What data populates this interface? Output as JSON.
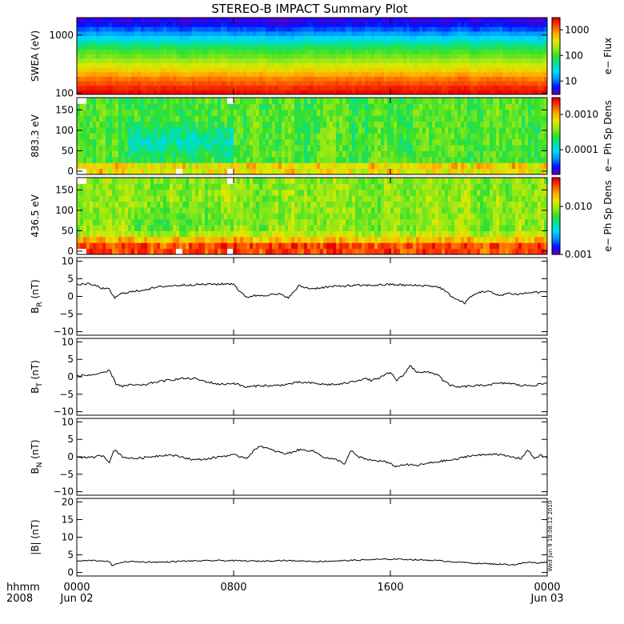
{
  "title": "STEREO-B IMPACT Summary Plot",
  "stamp": "Wed Jun  9 18:08:12 2010",
  "time_axis": {
    "row1_label": "hhmm",
    "row2_label": "2008",
    "ticks": [
      {
        "t": 0,
        "top": "0000",
        "bottom": "Jun 02"
      },
      {
        "t": 480,
        "top": "0800",
        "bottom": ""
      },
      {
        "t": 960,
        "top": "1600",
        "bottom": ""
      },
      {
        "t": 1440,
        "top": "0000",
        "bottom": "Jun 03"
      }
    ]
  },
  "colors": {
    "colormap": [
      "#5a00c8",
      "#0010ff",
      "#0090ff",
      "#00d8ff",
      "#00e0a0",
      "#30e030",
      "#90e818",
      "#e0e800",
      "#ffb000",
      "#ff5000",
      "#e80000"
    ],
    "line": "#000000",
    "frame": "#000000"
  },
  "chart_data": [
    {
      "type": "heatmap",
      "name": "swea",
      "ylabel": "SWEA (eV)",
      "yscale": "log",
      "ylim": [
        95,
        2000
      ],
      "yticks": [
        {
          "v": 100,
          "label": "100"
        },
        {
          "v": 1000,
          "label": "1000"
        }
      ],
      "colorbar": {
        "label": "e− Flux",
        "scale": "log",
        "range": [
          3,
          3000
        ],
        "ticks": [
          {
            "v": 10,
            "label": "10"
          },
          {
            "v": 100,
            "label": "100"
          },
          {
            "v": 1000,
            "label": "1000"
          }
        ]
      },
      "profile_level": [
        0.98,
        0.95,
        0.9,
        0.86,
        0.8,
        0.74,
        0.68,
        0.62,
        0.56,
        0.52,
        0.46,
        0.38,
        0.3,
        0.22,
        0.15,
        0.09,
        0.04
      ]
    },
    {
      "type": "heatmap",
      "name": "pad883",
      "ylabel": "883.3 eV",
      "ylim": [
        -8,
        180
      ],
      "yticks": [
        {
          "v": 0,
          "label": "0"
        },
        {
          "v": 50,
          "label": "50"
        },
        {
          "v": 100,
          "label": "100"
        },
        {
          "v": 150,
          "label": "150"
        }
      ],
      "colorbar": {
        "label": "e− Ph Sp Dens",
        "scale": "log",
        "range": [
          2e-05,
          0.003
        ],
        "ticks": [
          {
            "v": 0.0001,
            "label": "0.0001"
          },
          {
            "v": 0.001,
            "label": "0.0010"
          }
        ]
      },
      "base_level": 0.52
    },
    {
      "type": "heatmap",
      "name": "pad436",
      "ylabel": "436.5 eV",
      "ylim": [
        -8,
        180
      ],
      "yticks": [
        {
          "v": 0,
          "label": "0"
        },
        {
          "v": 50,
          "label": "50"
        },
        {
          "v": 100,
          "label": "100"
        },
        {
          "v": 150,
          "label": "150"
        }
      ],
      "colorbar": {
        "label": "e− Ph Sp Dens",
        "scale": "log",
        "range": [
          0.001,
          0.04
        ],
        "ticks": [
          {
            "v": 0.001,
            "label": "0.001"
          },
          {
            "v": 0.01,
            "label": "0.010"
          }
        ]
      },
      "base_level": 0.6
    },
    {
      "type": "line",
      "name": "br",
      "ylabel": "B",
      "ylabel_sub": "R",
      "ylabel_unit": " (nT)",
      "ylim": [
        -11,
        11
      ],
      "yticks": [
        {
          "v": -10,
          "label": "−10"
        },
        {
          "v": -5,
          "label": "−5"
        },
        {
          "v": 0,
          "label": "0"
        },
        {
          "v": 5,
          "label": "5"
        },
        {
          "v": 10,
          "label": "10"
        }
      ],
      "x": [
        0,
        30,
        60,
        80,
        100,
        115,
        140,
        170,
        200,
        260,
        320,
        380,
        440,
        480,
        500,
        520,
        540,
        580,
        620,
        650,
        680,
        700,
        720,
        760,
        800,
        860,
        920,
        960,
        1000,
        1040,
        1080,
        1110,
        1120,
        1160,
        1190,
        1200,
        1230,
        1260,
        1290,
        1320,
        1350,
        1380,
        1410,
        1440
      ],
      "values": [
        3.3,
        3.6,
        3.0,
        2.2,
        2.0,
        -0.5,
        1.0,
        1.3,
        1.8,
        2.8,
        3.2,
        3.4,
        3.5,
        3.6,
        1.2,
        -0.2,
        0.2,
        0.4,
        0.6,
        -0.3,
        3.0,
        2.5,
        2.2,
        2.6,
        2.9,
        3.1,
        3.2,
        3.4,
        3.2,
        3.1,
        3.0,
        2.6,
        2.0,
        -0.8,
        -1.9,
        -0.5,
        1.2,
        1.5,
        0.2,
        0.9,
        0.6,
        1.0,
        1.2,
        1.3
      ]
    },
    {
      "type": "line",
      "name": "bt",
      "ylabel": "B",
      "ylabel_sub": "T",
      "ylabel_unit": " (nT)",
      "ylim": [
        -11,
        11
      ],
      "yticks": [
        {
          "v": -10,
          "label": "−10"
        },
        {
          "v": -5,
          "label": "−5"
        },
        {
          "v": 0,
          "label": "0"
        },
        {
          "v": 5,
          "label": "5"
        },
        {
          "v": 10,
          "label": "10"
        }
      ],
      "x": [
        0,
        40,
        80,
        100,
        110,
        120,
        140,
        170,
        200,
        240,
        280,
        320,
        360,
        400,
        440,
        480,
        520,
        560,
        600,
        640,
        680,
        720,
        760,
        800,
        840,
        880,
        900,
        920,
        960,
        980,
        1000,
        1020,
        1040,
        1080,
        1110,
        1120,
        1140,
        1160,
        1200,
        1240,
        1280,
        1320,
        1360,
        1400,
        1440
      ],
      "values": [
        0.3,
        0.5,
        1.0,
        1.8,
        0.0,
        -2.0,
        -2.7,
        -2.3,
        -2.5,
        -1.5,
        -1.0,
        -0.5,
        -0.5,
        -1.5,
        -2.2,
        -1.8,
        -3.0,
        -2.5,
        -2.6,
        -2.2,
        -1.6,
        -1.8,
        -2.2,
        -2.2,
        -1.5,
        -0.5,
        -1.0,
        -0.6,
        1.2,
        -1.0,
        0.5,
        3.2,
        1.5,
        1.2,
        0.5,
        -1.0,
        -2.2,
        -3.0,
        -2.7,
        -2.5,
        -2.0,
        -1.8,
        -2.5,
        -2.4,
        -1.8
      ]
    },
    {
      "type": "line",
      "name": "bn",
      "ylabel": "B",
      "ylabel_sub": "N",
      "ylabel_unit": " (nT)",
      "ylim": [
        -11,
        11
      ],
      "yticks": [
        {
          "v": -10,
          "label": "−10"
        },
        {
          "v": -5,
          "label": "−5"
        },
        {
          "v": 0,
          "label": "0"
        },
        {
          "v": 5,
          "label": "5"
        },
        {
          "v": 10,
          "label": "10"
        }
      ],
      "x": [
        0,
        40,
        80,
        100,
        110,
        120,
        140,
        170,
        200,
        240,
        280,
        320,
        360,
        400,
        440,
        480,
        520,
        540,
        560,
        600,
        640,
        680,
        720,
        760,
        800,
        820,
        840,
        860,
        900,
        940,
        980,
        1000,
        1040,
        1080,
        1120,
        1160,
        1200,
        1240,
        1280,
        1320,
        1360,
        1380,
        1400,
        1420,
        1440
      ],
      "values": [
        0.0,
        -0.3,
        0.4,
        -1.5,
        1.2,
        1.8,
        0.0,
        -0.5,
        -0.3,
        0.2,
        0.6,
        0.0,
        -0.9,
        -0.6,
        0.1,
        0.5,
        -0.3,
        1.5,
        3.2,
        1.8,
        0.8,
        2.0,
        1.8,
        -0.2,
        -1.0,
        -2.0,
        1.8,
        0.0,
        -1.0,
        -1.3,
        -2.8,
        -2.2,
        -2.5,
        -1.8,
        -1.2,
        -0.8,
        0.3,
        0.5,
        0.9,
        0.1,
        -0.5,
        2.0,
        -0.4,
        0.4,
        -0.3
      ]
    },
    {
      "type": "line",
      "name": "bmag",
      "ylabel": "|B| (nT)",
      "ylabel_sub": "",
      "ylabel_unit": "",
      "ylim": [
        -1,
        21
      ],
      "yticks": [
        {
          "v": 0,
          "label": "0"
        },
        {
          "v": 5,
          "label": "5"
        },
        {
          "v": 10,
          "label": "10"
        },
        {
          "v": 15,
          "label": "15"
        },
        {
          "v": 20,
          "label": "20"
        }
      ],
      "x": [
        0,
        40,
        80,
        100,
        110,
        130,
        160,
        200,
        260,
        320,
        380,
        440,
        500,
        560,
        620,
        680,
        740,
        800,
        860,
        920,
        980,
        1040,
        1100,
        1160,
        1220,
        1280,
        1340,
        1380,
        1410,
        1440
      ],
      "values": [
        3.2,
        3.4,
        3.3,
        3.0,
        1.8,
        2.8,
        3.1,
        3.0,
        2.9,
        3.2,
        3.3,
        3.4,
        3.3,
        3.2,
        3.4,
        3.3,
        3.1,
        3.3,
        3.5,
        3.7,
        3.8,
        3.6,
        3.4,
        3.0,
        2.6,
        2.4,
        2.2,
        2.9,
        2.7,
        3.0
      ]
    }
  ]
}
